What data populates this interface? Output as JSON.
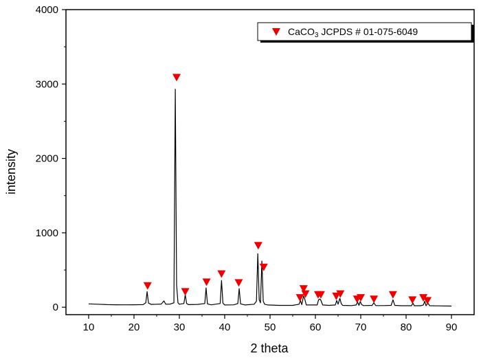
{
  "chart_data": {
    "type": "line",
    "title": "",
    "xlabel": "2 theta",
    "ylabel": "intensity",
    "xlim": [
      5,
      95
    ],
    "ylim": [
      -100,
      4000
    ],
    "x_ticks": [
      10,
      20,
      30,
      40,
      50,
      60,
      70,
      80,
      90
    ],
    "y_ticks": [
      0,
      1000,
      2000,
      3000,
      4000
    ],
    "grid": false,
    "legend": {
      "position": "top-right",
      "label_main": "CaCO",
      "label_sub": "3",
      "label_rest": " JCPDS # 01-075-6049",
      "marker": "red-down-triangle"
    },
    "colors": {
      "line": "#000000",
      "marker": "#ee0000",
      "axis": "#000000"
    },
    "series": [
      {
        "x": [
          10.0,
          12.0,
          14.0,
          16.0,
          18.0,
          20.0,
          22.0,
          22.6,
          22.9,
          23.2,
          23.8,
          25.0,
          26.0,
          26.6,
          27.0,
          28.0,
          28.8,
          29.1,
          29.4,
          29.7,
          30.0,
          31.0,
          31.3,
          31.6,
          32.0,
          34.0,
          35.6,
          35.9,
          36.2,
          37.0,
          39.0,
          39.3,
          39.6,
          40.0,
          42.0,
          42.9,
          43.2,
          43.5,
          44.5,
          46.5,
          47.0,
          47.3,
          47.6,
          47.9,
          48.2,
          48.5,
          48.8,
          49.5,
          52.0,
          55.0,
          56.4,
          56.7,
          57.0,
          57.4,
          57.6,
          58.0,
          60.4,
          60.7,
          61.0,
          61.2,
          61.6,
          63.0,
          64.4,
          64.7,
          65.0,
          65.4,
          65.7,
          66.0,
          68.0,
          69.0,
          69.3,
          69.6,
          69.9,
          70.2,
          70.6,
          72.5,
          72.9,
          73.3,
          75.0,
          76.7,
          77.1,
          77.5,
          79.0,
          81.2,
          81.5,
          81.8,
          83.2,
          83.8,
          84.1,
          84.4,
          84.8,
          85.2,
          87.0,
          90.0
        ],
        "y": [
          45,
          40,
          35,
          33,
          32,
          33,
          35,
          60,
          210,
          55,
          38,
          40,
          42,
          85,
          40,
          42,
          60,
          2930,
          300,
          60,
          40,
          50,
          170,
          50,
          35,
          38,
          50,
          260,
          45,
          32,
          50,
          360,
          55,
          30,
          32,
          50,
          250,
          45,
          30,
          40,
          80,
          720,
          100,
          60,
          620,
          80,
          40,
          30,
          25,
          25,
          40,
          90,
          35,
          150,
          120,
          30,
          30,
          100,
          110,
          95,
          30,
          25,
          30,
          90,
          40,
          120,
          50,
          25,
          22,
          30,
          70,
          25,
          75,
          35,
          22,
          25,
          60,
          22,
          22,
          25,
          100,
          25,
          20,
          20,
          55,
          20,
          20,
          30,
          80,
          20,
          55,
          20,
          18,
          15
        ]
      }
    ],
    "markers": [
      {
        "x": 23.0,
        "y": 290
      },
      {
        "x": 29.4,
        "y": 3090
      },
      {
        "x": 31.3,
        "y": 210
      },
      {
        "x": 36.0,
        "y": 340
      },
      {
        "x": 39.3,
        "y": 450
      },
      {
        "x": 43.1,
        "y": 330
      },
      {
        "x": 47.4,
        "y": 830
      },
      {
        "x": 48.6,
        "y": 540
      },
      {
        "x": 56.6,
        "y": 130
      },
      {
        "x": 57.4,
        "y": 250
      },
      {
        "x": 57.8,
        "y": 180
      },
      {
        "x": 60.6,
        "y": 170
      },
      {
        "x": 61.2,
        "y": 170
      },
      {
        "x": 64.6,
        "y": 150
      },
      {
        "x": 65.5,
        "y": 180
      },
      {
        "x": 69.2,
        "y": 110
      },
      {
        "x": 70.0,
        "y": 130
      },
      {
        "x": 72.9,
        "y": 110
      },
      {
        "x": 77.1,
        "y": 170
      },
      {
        "x": 81.4,
        "y": 100
      },
      {
        "x": 83.8,
        "y": 130
      },
      {
        "x": 84.7,
        "y": 90
      }
    ]
  }
}
